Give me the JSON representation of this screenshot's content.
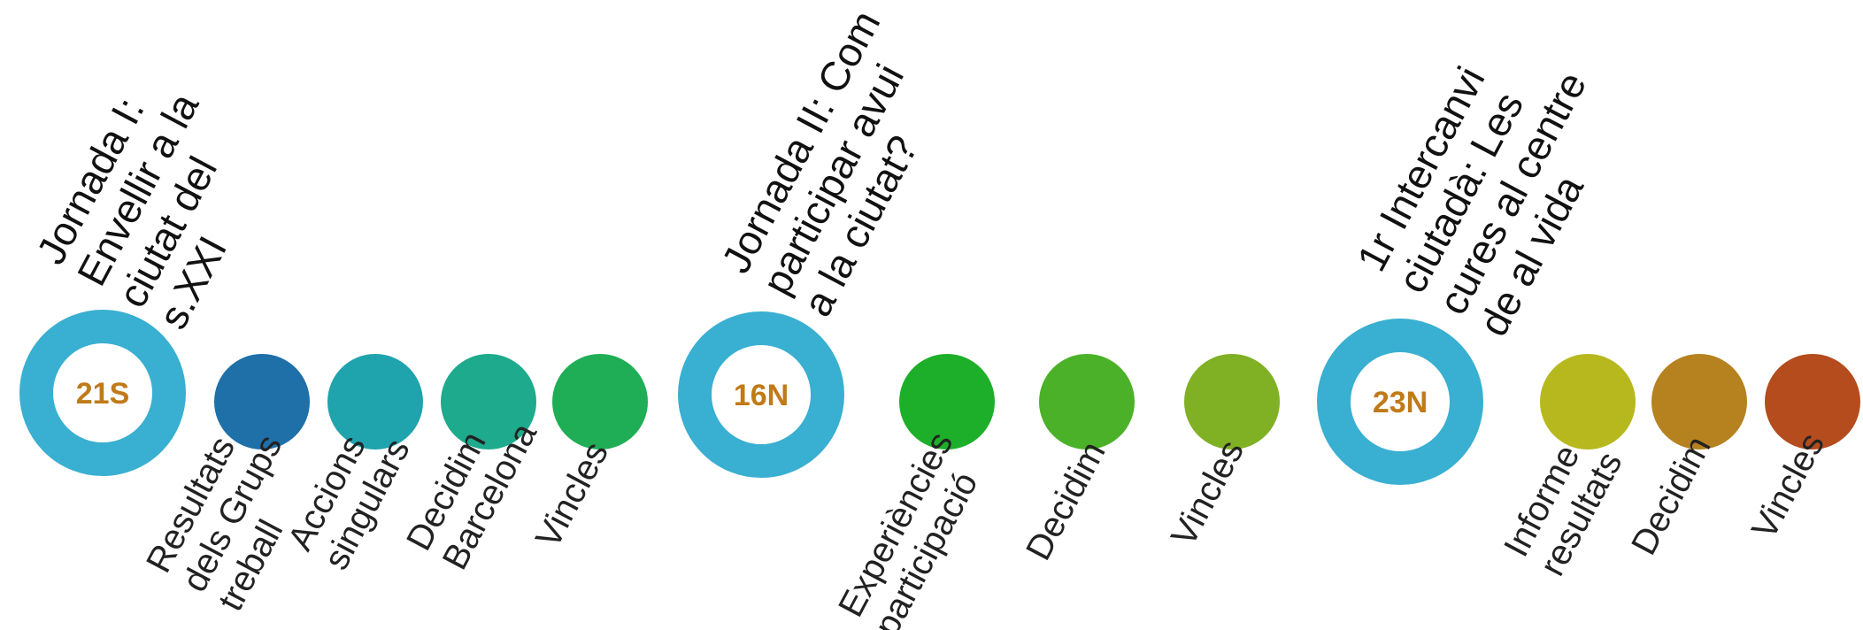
{
  "diagram": {
    "hubs": [
      {
        "id": "hub-21s",
        "label": "21S",
        "title": [
          "Jornada I:",
          "Envellir a la",
          "ciutat del",
          "s.XXI"
        ]
      },
      {
        "id": "hub-16n",
        "label": "16N",
        "title": [
          "Jornada II: Com",
          "participar avui",
          "a la ciutat?"
        ]
      },
      {
        "id": "hub-23n",
        "label": "23N",
        "title": [
          "1r Intercanvi",
          "ciutadà: Les",
          "cures al centre",
          "de al vida"
        ]
      }
    ],
    "items": [
      {
        "id": "resultats-grups-treball",
        "lines": [
          "Resultats",
          "dels Grups",
          "treball"
        ],
        "color": "#1f6fa8"
      },
      {
        "id": "accions-singulars",
        "lines": [
          "Accions",
          "singulars"
        ],
        "color": "#1fa3ad"
      },
      {
        "id": "decidim-barcelona",
        "lines": [
          "Decidim",
          "Barcelona"
        ],
        "color": "#1eaa8c"
      },
      {
        "id": "vincles-1",
        "lines": [
          "Vincles"
        ],
        "color": "#1fae56"
      },
      {
        "id": "experiencies-participacio",
        "lines": [
          "Experiències",
          "participació"
        ],
        "color": "#1daf2a"
      },
      {
        "id": "decidim-2",
        "lines": [
          "Decidim"
        ],
        "color": "#4bb128"
      },
      {
        "id": "vincles-2",
        "lines": [
          "Vincles"
        ],
        "color": "#80b023"
      },
      {
        "id": "informe-resultats",
        "lines": [
          "Informe",
          "resultats"
        ],
        "color": "#b7b81d"
      },
      {
        "id": "decidim-3",
        "lines": [
          "Decidim"
        ],
        "color": "#b6811f"
      },
      {
        "id": "vincles-3",
        "lines": [
          "Vincles"
        ],
        "color": "#b44c1d"
      }
    ],
    "colors": {
      "hub_ring": "#39afd1",
      "hub_label": "#c07a18"
    }
  }
}
